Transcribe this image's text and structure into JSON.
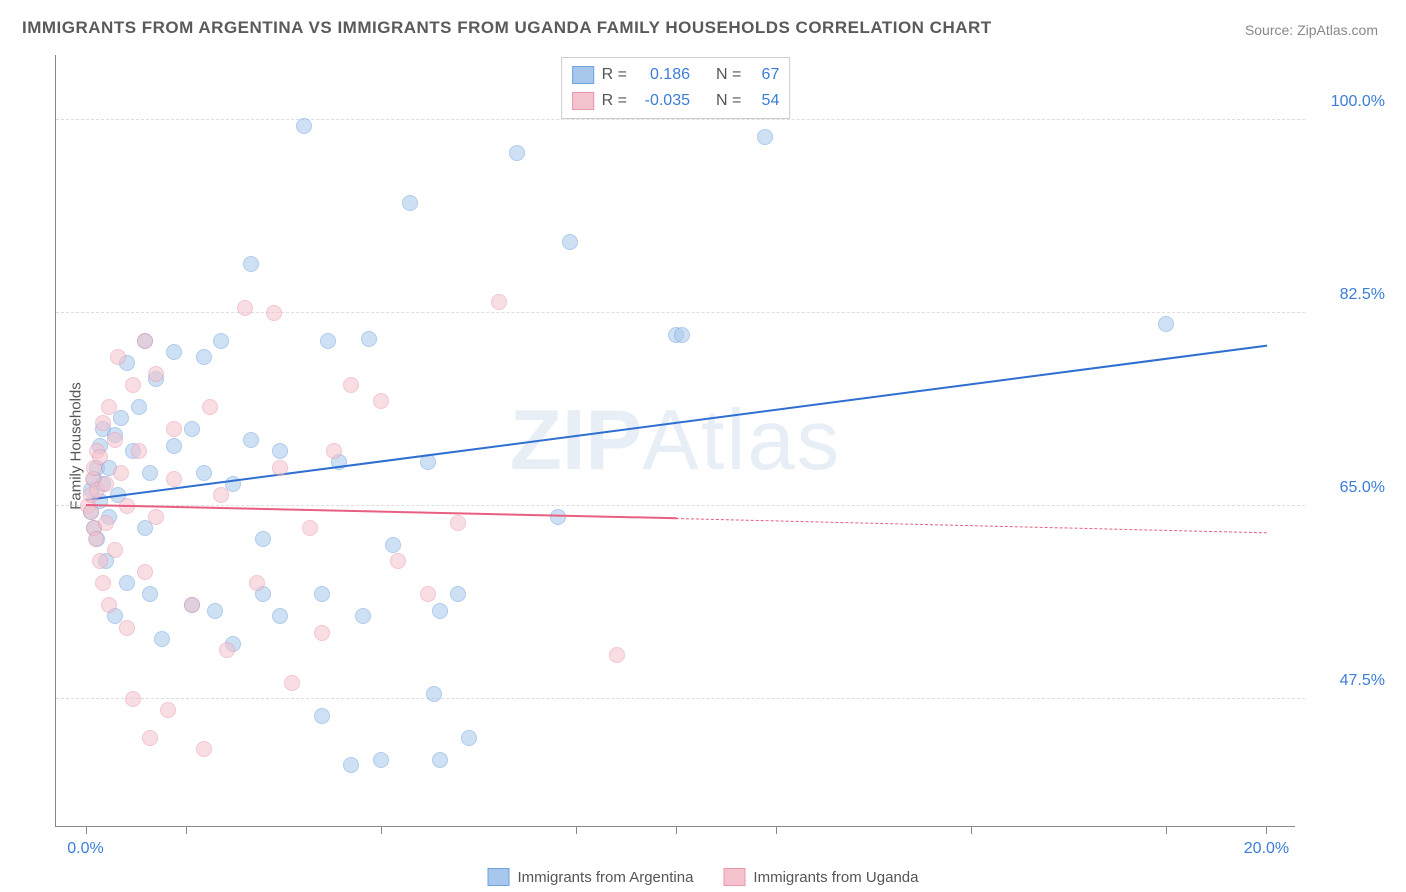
{
  "title": "IMMIGRANTS FROM ARGENTINA VS IMMIGRANTS FROM UGANDA FAMILY HOUSEHOLDS CORRELATION CHART",
  "source": "Source: ZipAtlas.com",
  "ylabel": "Family Households",
  "watermark_a": "ZIP",
  "watermark_b": "Atlas",
  "chart": {
    "type": "scatter-with-regression",
    "xlim": [
      -0.5,
      20.5
    ],
    "ylim": [
      36,
      106
    ],
    "x_ticks": [
      0,
      1.7,
      5.0,
      8.3,
      10.0,
      11.7,
      15.0,
      18.3,
      20.0
    ],
    "x_tick_labels": {
      "0": "0.0%",
      "20": "20.0%"
    },
    "y_ticks": [
      47.5,
      65.0,
      82.5,
      100.0
    ],
    "y_tick_labels": [
      "47.5%",
      "65.0%",
      "82.5%",
      "100.0%"
    ],
    "background_color": "#ffffff",
    "grid_color": "#dddddd",
    "axis_color": "#888888",
    "marker_radius": 8,
    "marker_opacity": 0.55,
    "line_width": 2.5
  },
  "series": [
    {
      "name": "Immigrants from Argentina",
      "color_fill": "#a7c7ec",
      "color_stroke": "#6fa3dd",
      "line_color": "#2e6fd1",
      "R": "0.186",
      "N": "67",
      "reg_start": [
        0.0,
        65.5
      ],
      "reg_end_solid": [
        20.0,
        79.5
      ],
      "reg_end_dash": [
        20.0,
        79.5
      ],
      "points": [
        [
          0.1,
          64.5
        ],
        [
          0.1,
          66.5
        ],
        [
          0.15,
          67.5
        ],
        [
          0.15,
          63.0
        ],
        [
          0.2,
          68.5
        ],
        [
          0.2,
          62.0
        ],
        [
          0.25,
          70.5
        ],
        [
          0.25,
          65.5
        ],
        [
          0.3,
          67.0
        ],
        [
          0.3,
          72.0
        ],
        [
          0.35,
          60.0
        ],
        [
          0.4,
          68.5
        ],
        [
          0.4,
          64.0
        ],
        [
          0.5,
          71.5
        ],
        [
          0.5,
          55.0
        ],
        [
          0.55,
          66.0
        ],
        [
          0.6,
          73.0
        ],
        [
          0.7,
          78.0
        ],
        [
          0.7,
          58.0
        ],
        [
          0.8,
          70.0
        ],
        [
          0.9,
          74.0
        ],
        [
          1.0,
          80.0
        ],
        [
          1.0,
          63.0
        ],
        [
          1.1,
          57.0
        ],
        [
          1.1,
          68.0
        ],
        [
          1.2,
          76.5
        ],
        [
          1.3,
          53.0
        ],
        [
          1.5,
          70.5
        ],
        [
          1.5,
          79.0
        ],
        [
          1.8,
          72.0
        ],
        [
          1.8,
          56.0
        ],
        [
          2.0,
          78.5
        ],
        [
          2.0,
          68.0
        ],
        [
          2.2,
          55.5
        ],
        [
          2.3,
          80.0
        ],
        [
          2.5,
          67.0
        ],
        [
          2.5,
          52.5
        ],
        [
          2.8,
          71.0
        ],
        [
          2.8,
          87.0
        ],
        [
          3.0,
          57.0
        ],
        [
          3.0,
          62.0
        ],
        [
          3.3,
          70.0
        ],
        [
          3.3,
          55.0
        ],
        [
          3.7,
          99.5
        ],
        [
          4.0,
          46.0
        ],
        [
          4.0,
          57.0
        ],
        [
          4.1,
          80.0
        ],
        [
          4.3,
          69.0
        ],
        [
          4.5,
          41.5
        ],
        [
          4.7,
          55.0
        ],
        [
          4.8,
          80.2
        ],
        [
          5.0,
          42.0
        ],
        [
          5.2,
          61.5
        ],
        [
          5.5,
          92.5
        ],
        [
          5.8,
          69.0
        ],
        [
          5.9,
          48.0
        ],
        [
          6.0,
          55.5
        ],
        [
          6.0,
          42.0
        ],
        [
          6.3,
          57.0
        ],
        [
          6.5,
          44.0
        ],
        [
          7.3,
          97.0
        ],
        [
          8.0,
          64.0
        ],
        [
          8.2,
          89.0
        ],
        [
          10.0,
          80.5
        ],
        [
          10.1,
          80.5
        ],
        [
          11.5,
          98.5
        ],
        [
          18.3,
          81.5
        ]
      ]
    },
    {
      "name": "Immigrants from Uganda",
      "color_fill": "#f4c2cd",
      "color_stroke": "#e998ac",
      "line_color": "#e85f82",
      "R": "-0.035",
      "N": "54",
      "reg_start": [
        0.0,
        65.0
      ],
      "reg_end_solid": [
        10.0,
        63.8
      ],
      "reg_end_dash": [
        20.0,
        62.5
      ],
      "points": [
        [
          0.05,
          65.0
        ],
        [
          0.1,
          64.5
        ],
        [
          0.1,
          66.0
        ],
        [
          0.12,
          67.5
        ],
        [
          0.15,
          63.0
        ],
        [
          0.15,
          68.5
        ],
        [
          0.18,
          62.0
        ],
        [
          0.2,
          66.5
        ],
        [
          0.2,
          70.0
        ],
        [
          0.25,
          60.0
        ],
        [
          0.25,
          69.5
        ],
        [
          0.3,
          72.5
        ],
        [
          0.3,
          58.0
        ],
        [
          0.35,
          67.0
        ],
        [
          0.35,
          63.5
        ],
        [
          0.4,
          74.0
        ],
        [
          0.4,
          56.0
        ],
        [
          0.5,
          71.0
        ],
        [
          0.5,
          61.0
        ],
        [
          0.55,
          78.5
        ],
        [
          0.6,
          68.0
        ],
        [
          0.7,
          54.0
        ],
        [
          0.7,
          65.0
        ],
        [
          0.8,
          76.0
        ],
        [
          0.8,
          47.5
        ],
        [
          0.9,
          70.0
        ],
        [
          1.0,
          80.0
        ],
        [
          1.0,
          59.0
        ],
        [
          1.1,
          44.0
        ],
        [
          1.2,
          77.0
        ],
        [
          1.2,
          64.0
        ],
        [
          1.4,
          46.5
        ],
        [
          1.5,
          67.5
        ],
        [
          1.5,
          72.0
        ],
        [
          1.8,
          56.0
        ],
        [
          2.0,
          43.0
        ],
        [
          2.1,
          74.0
        ],
        [
          2.3,
          66.0
        ],
        [
          2.4,
          52.0
        ],
        [
          2.7,
          83.0
        ],
        [
          2.9,
          58.0
        ],
        [
          3.2,
          82.5
        ],
        [
          3.3,
          68.5
        ],
        [
          3.5,
          49.0
        ],
        [
          3.8,
          63.0
        ],
        [
          4.0,
          53.5
        ],
        [
          4.2,
          70.0
        ],
        [
          4.5,
          76.0
        ],
        [
          5.0,
          74.5
        ],
        [
          5.3,
          60.0
        ],
        [
          5.8,
          57.0
        ],
        [
          6.3,
          63.5
        ],
        [
          7.0,
          83.5
        ],
        [
          9.0,
          51.5
        ]
      ]
    }
  ],
  "stat_legend": {
    "r_label": "R =",
    "n_label": "N ="
  },
  "bottom_legend_labels": [
    "Immigrants from Argentina",
    "Immigrants from Uganda"
  ]
}
